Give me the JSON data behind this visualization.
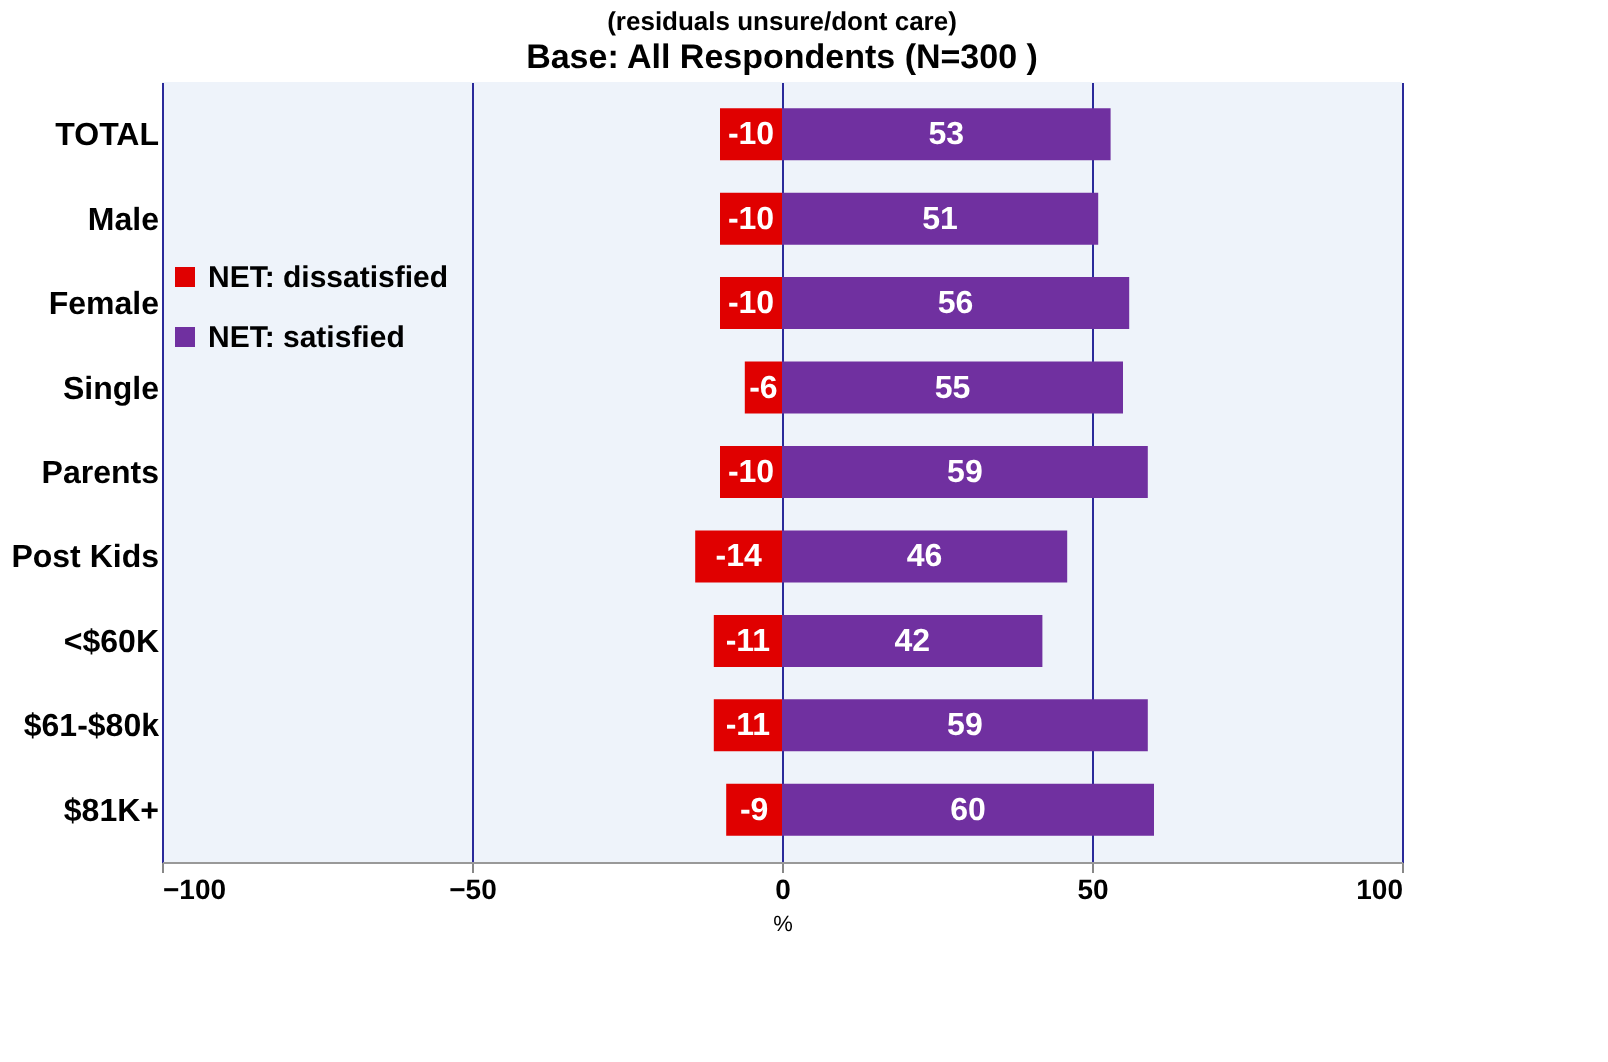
{
  "chart_data": {
    "type": "bar",
    "orientation": "horizontal",
    "stacked": true,
    "title": "(residuals unsure/dont care)",
    "subtitle": "Base: All Respondents (N=300 )",
    "xlabel": "%",
    "categories": [
      "TOTAL",
      "Male",
      "Female",
      "Single",
      "Parents",
      "Post Kids",
      "<$60K",
      "$61-$80k",
      "$81K+"
    ],
    "series": [
      {
        "name": "NET: dissatisfied",
        "color": "#e00000",
        "values": [
          -10,
          -10,
          -10,
          -6,
          -10,
          -14,
          -11,
          -11,
          -9
        ]
      },
      {
        "name": "NET: satisfied",
        "color": "#7030a0",
        "values": [
          53,
          51,
          56,
          55,
          59,
          46,
          42,
          59,
          60
        ]
      }
    ],
    "xlim": [
      -100,
      100
    ],
    "xticks": [
      -100,
      -50,
      0,
      50,
      100
    ],
    "grid": "x",
    "legend": "left",
    "data_labels": true
  }
}
